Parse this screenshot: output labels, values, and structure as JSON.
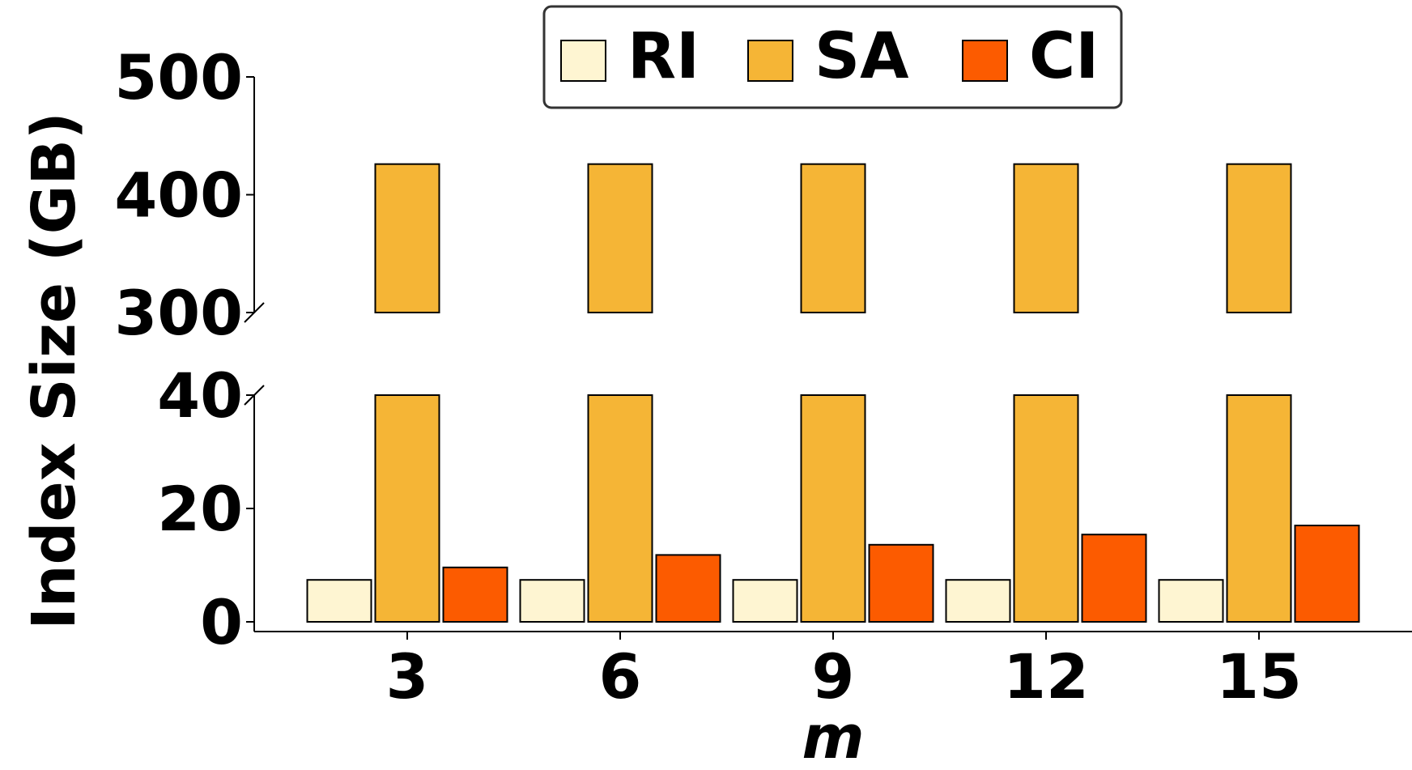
{
  "chart_data": {
    "type": "bar",
    "broken_axis": true,
    "categories": [
      "3",
      "6",
      "9",
      "12",
      "15"
    ],
    "xlabel": "m",
    "ylabel": "Index Size (GB)",
    "series": [
      {
        "name": "RI",
        "color": "#fef5d2",
        "values": [
          7.4,
          7.4,
          7.4,
          7.4,
          7.4
        ]
      },
      {
        "name": "SA",
        "color": "#f5b536",
        "values": [
          426,
          426,
          426,
          426,
          426
        ]
      },
      {
        "name": "CI",
        "color": "#fc5b00",
        "values": [
          9.6,
          11.8,
          13.6,
          15.4,
          17.0
        ]
      }
    ],
    "upper_panel": {
      "ylim": [
        300,
        500
      ],
      "yticks": [
        "300",
        "400",
        "500"
      ]
    },
    "lower_panel": {
      "ylim": [
        0,
        40
      ],
      "yticks": [
        "0",
        "20",
        "40"
      ]
    },
    "legend_position": "top-center",
    "grid": false
  }
}
